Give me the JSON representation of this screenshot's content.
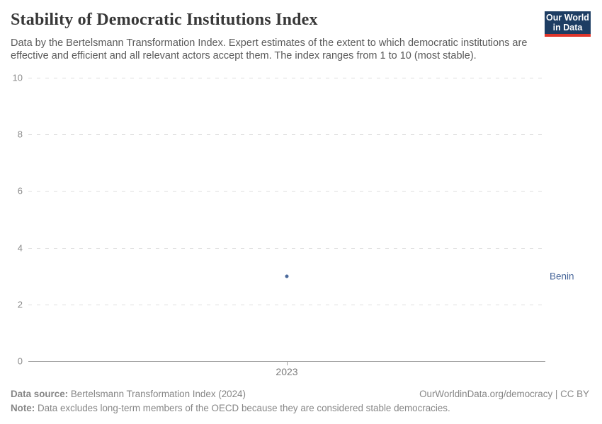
{
  "header": {
    "title": "Stability of Democratic Institutions Index",
    "subtitle": "Data by the Bertelsmann Transformation Index. Expert estimates of the extent to which democratic institutions are effective and efficient and all relevant actors accept them. The index ranges from 1 to 10 (most stable).",
    "logo": {
      "line1": "Our World",
      "line2": "in Data",
      "bg_color": "#1d3d63",
      "accent_color": "#e0362b"
    }
  },
  "chart_data": {
    "type": "scatter",
    "title": "Stability of Democratic Institutions Index",
    "x": [
      2023
    ],
    "series": [
      {
        "name": "Benin",
        "values": [
          3.0
        ],
        "color": "#4c6a9c"
      }
    ],
    "xlabel": "",
    "ylabel": "",
    "ylim": [
      0,
      10
    ],
    "yticks": [
      0,
      2,
      4,
      6,
      8,
      10
    ],
    "xticks": [
      "2023"
    ],
    "grid": true,
    "gridline_color": "#dedede",
    "axis_color": "#a3a3a3",
    "legend_position": "right-of-point"
  },
  "footer": {
    "source_label": "Data source:",
    "source_text": " Bertelsmann Transformation Index (2024)",
    "credit": "OurWorldinData.org/democracy | CC BY",
    "note_label": "Note:",
    "note_text": " Data excludes long-term members of the OECD because they are considered stable democracies."
  }
}
